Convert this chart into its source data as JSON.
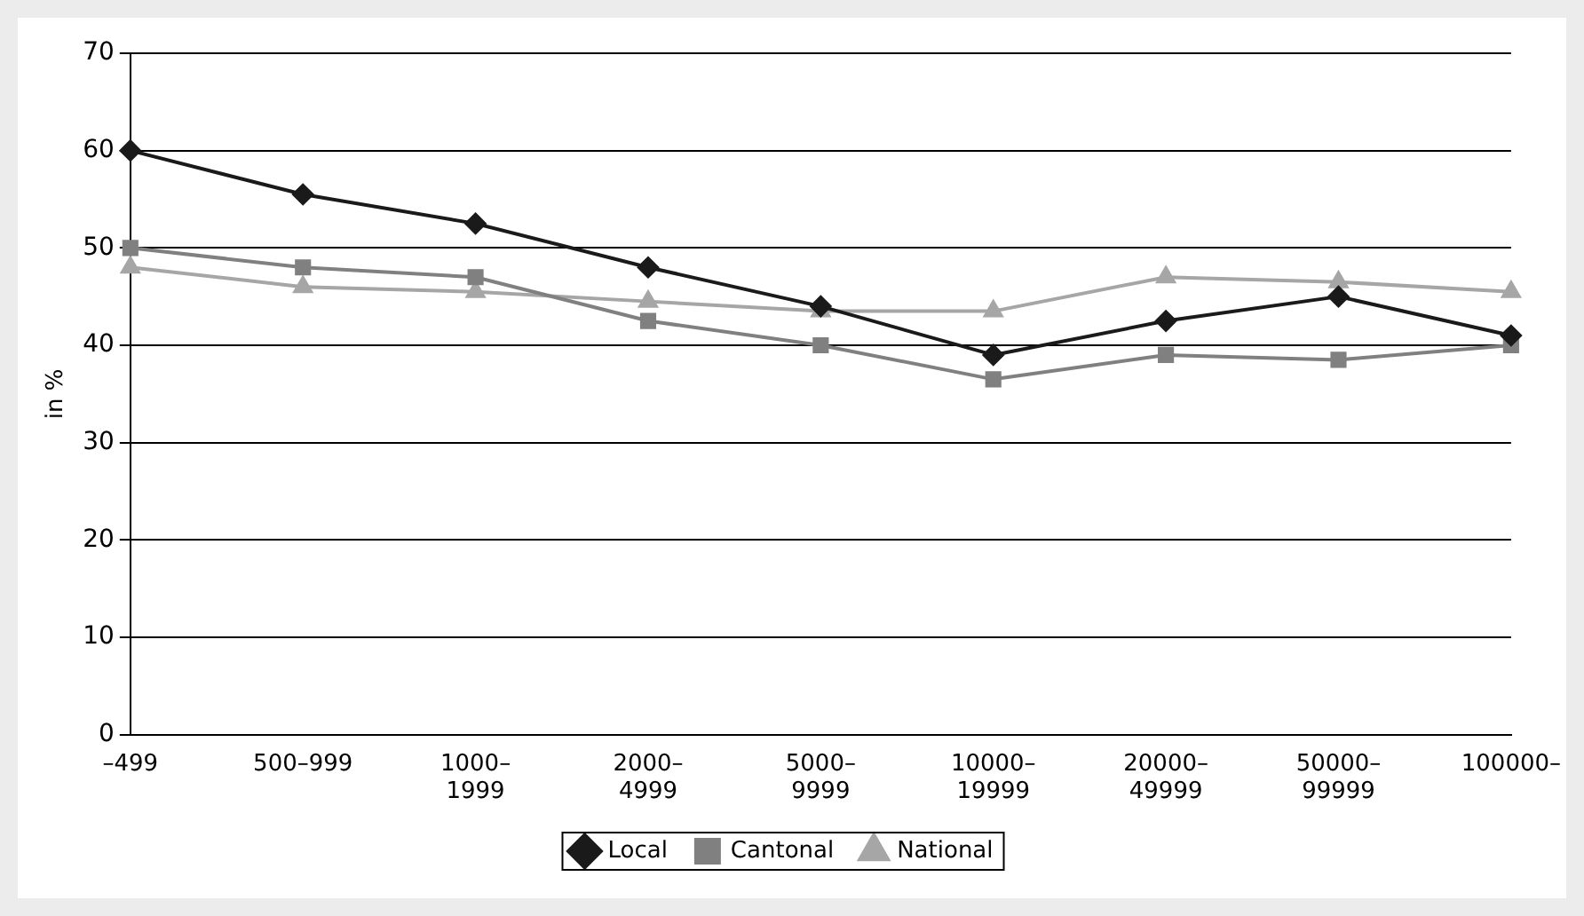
{
  "chart_data": {
    "type": "line",
    "ylabel": "in %",
    "categories": [
      "–499",
      "500–999",
      "1000–1999",
      "2000–4999",
      "5000–9999",
      "10000–19999",
      "20000–49999",
      "50000–99999",
      "100000–"
    ],
    "series": [
      {
        "name": "Local",
        "color": "#1a1a1a",
        "marker": "diamond",
        "values": [
          60,
          55.5,
          52.5,
          48,
          44,
          39,
          42.5,
          45,
          41
        ]
      },
      {
        "name": "Cantonal",
        "color": "#808080",
        "marker": "square",
        "values": [
          50,
          48,
          47,
          42.5,
          40,
          36.5,
          39,
          38.5,
          40
        ]
      },
      {
        "name": "National",
        "color": "#a6a6a6",
        "marker": "triangle",
        "values": [
          48,
          46,
          45.5,
          44.5,
          43.5,
          43.5,
          47,
          46.5,
          45.5
        ]
      }
    ],
    "ylim": [
      0,
      70
    ],
    "yticks": [
      0,
      10,
      20,
      30,
      40,
      50,
      60,
      70
    ],
    "grid": "y",
    "legend": "bottom"
  }
}
